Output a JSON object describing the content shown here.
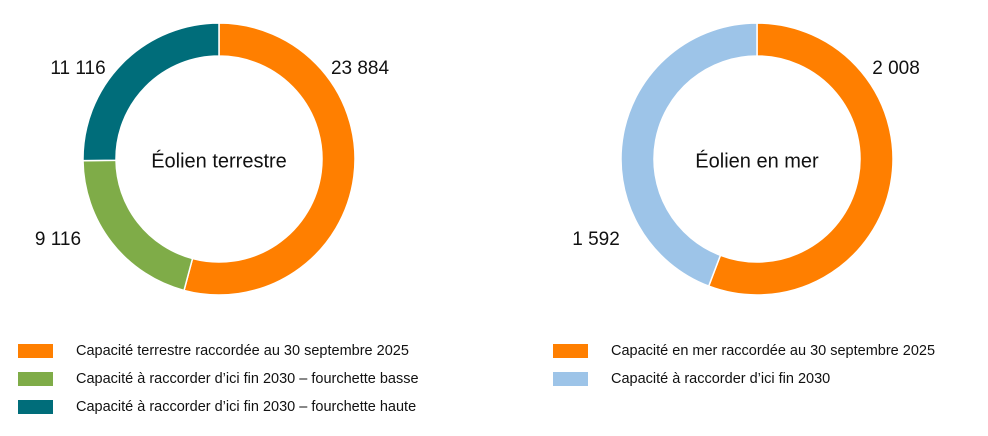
{
  "chart_data": [
    {
      "type": "pie",
      "center_label": "Éolien terrestre",
      "slices": [
        {
          "label": "Capacité terrestre raccordée au 30 septembre 2025",
          "value": 23884,
          "display": "23 884",
          "color": "#FF7F00"
        },
        {
          "label": "Capacité à raccorder d’ici fin 2030 – fourchette basse",
          "value": 9116,
          "display": "9 116",
          "color": "#7FAC48"
        },
        {
          "label": "Capacité à raccorder d’ici fin 2030 – fourchette haute",
          "value": 11116,
          "display": "11 116",
          "color": "#006D7A"
        }
      ]
    },
    {
      "type": "pie",
      "center_label": "Éolien en mer",
      "slices": [
        {
          "label": "Capacité en mer raccordée au 30 septembre 2025",
          "value": 2008,
          "display": "2 008",
          "color": "#FF7F00"
        },
        {
          "label": "Capacité à raccorder d’ici fin 2030",
          "value": 1592,
          "display": "1 592",
          "color": "#9DC4E8"
        }
      ]
    }
  ]
}
